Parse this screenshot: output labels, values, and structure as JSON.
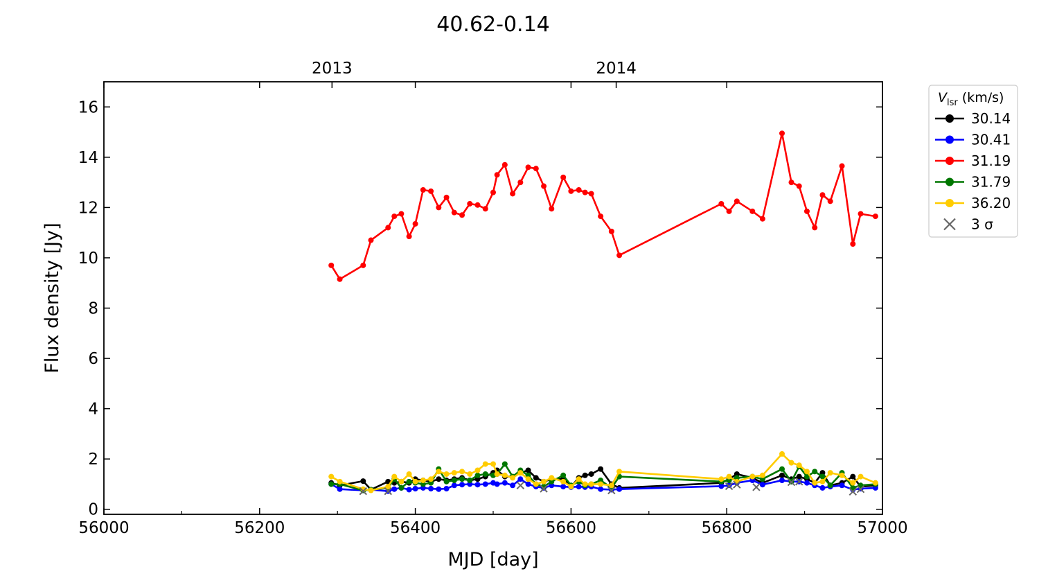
{
  "chart_data": {
    "type": "line",
    "title": "40.62-0.14",
    "xlabel": "MJD [day]",
    "ylabel": "Flux density [Jy]",
    "xlim": [
      56000,
      57000
    ],
    "ylim": [
      -0.2,
      17
    ],
    "x_ticks": [
      56000,
      56200,
      56400,
      56600,
      56800,
      57000
    ],
    "y_ticks": [
      0,
      2,
      4,
      6,
      8,
      10,
      12,
      14,
      16
    ],
    "top_axis": {
      "ticks": [
        {
          "label": "2013",
          "x": 56293
        },
        {
          "label": "2014",
          "x": 56658
        }
      ]
    },
    "grid": false,
    "legend": {
      "position": "outside-right",
      "title_main": "V",
      "title_sub": "lsr",
      "title_unit": " (km/s)",
      "sigma_label": "3 σ"
    },
    "series": [
      {
        "name": "30.14",
        "color": "#000000",
        "x": [
          56292,
          56303,
          56333,
          56343,
          56365,
          56373,
          56382,
          56392,
          56400,
          56410,
          56420,
          56430,
          56440,
          56450,
          56460,
          56470,
          56480,
          56490,
          56500,
          56505,
          56515,
          56525,
          56535,
          56545,
          56555,
          56565,
          56575,
          56590,
          56600,
          56610,
          56618,
          56626,
          56638,
          56652,
          56662,
          56793,
          56803,
          56813,
          56833,
          56846,
          56871,
          56883,
          56893,
          56903,
          56913,
          56923,
          56933,
          56948,
          56962,
          56972,
          56991
        ],
        "y": [
          1.05,
          0.95,
          1.12,
          0.78,
          1.1,
          1.05,
          1.1,
          1.05,
          1.2,
          1.15,
          1.1,
          1.2,
          1.15,
          1.2,
          1.25,
          1.15,
          1.2,
          1.3,
          1.45,
          1.55,
          1.3,
          1.3,
          1.45,
          1.55,
          1.25,
          1.1,
          1.2,
          1.2,
          0.9,
          1.25,
          1.35,
          1.4,
          1.6,
          1.0,
          0.85,
          1.05,
          1.2,
          1.4,
          1.25,
          1.05,
          1.35,
          1.2,
          1.3,
          1.2,
          1.05,
          1.45,
          0.95,
          1.05,
          1.3,
          0.9,
          0.95
        ]
      },
      {
        "name": "30.41",
        "color": "#0000ff",
        "x": [
          56292,
          56303,
          56333,
          56343,
          56365,
          56373,
          56382,
          56392,
          56400,
          56410,
          56420,
          56430,
          56440,
          56450,
          56460,
          56470,
          56480,
          56490,
          56500,
          56505,
          56515,
          56525,
          56535,
          56545,
          56555,
          56565,
          56575,
          56590,
          56600,
          56610,
          56618,
          56626,
          56638,
          56652,
          56662,
          56793,
          56803,
          56813,
          56833,
          56846,
          56871,
          56883,
          56893,
          56903,
          56913,
          56923,
          56933,
          56948,
          56962,
          56972,
          56991
        ],
        "y": [
          1.0,
          0.8,
          0.75,
          0.78,
          0.72,
          0.8,
          0.85,
          0.78,
          0.82,
          0.85,
          0.82,
          0.8,
          0.82,
          0.95,
          0.98,
          1.0,
          0.98,
          1.0,
          1.05,
          1.0,
          1.05,
          0.95,
          1.2,
          1.0,
          0.9,
          0.85,
          0.95,
          0.9,
          0.88,
          0.9,
          0.88,
          0.9,
          0.8,
          0.78,
          0.8,
          0.92,
          0.95,
          1.05,
          1.15,
          0.98,
          1.15,
          1.1,
          1.1,
          1.05,
          0.95,
          0.85,
          0.9,
          0.95,
          0.78,
          0.82,
          0.85
        ]
      },
      {
        "name": "31.19",
        "color": "#ff0000",
        "x": [
          56292,
          56303,
          56333,
          56343,
          56365,
          56373,
          56382,
          56392,
          56400,
          56410,
          56420,
          56430,
          56440,
          56450,
          56460,
          56470,
          56480,
          56490,
          56500,
          56505,
          56515,
          56525,
          56535,
          56545,
          56555,
          56565,
          56575,
          56590,
          56600,
          56610,
          56618,
          56626,
          56638,
          56652,
          56662,
          56793,
          56803,
          56813,
          56833,
          56846,
          56871,
          56883,
          56893,
          56903,
          56913,
          56923,
          56933,
          56948,
          56962,
          56972,
          56991
        ],
        "y": [
          9.7,
          9.15,
          9.7,
          10.7,
          11.2,
          11.65,
          11.75,
          10.85,
          11.35,
          12.7,
          12.65,
          12.0,
          12.4,
          11.8,
          11.7,
          12.15,
          12.1,
          11.95,
          12.6,
          13.3,
          13.7,
          12.55,
          13.0,
          13.6,
          13.55,
          12.85,
          11.95,
          13.2,
          12.65,
          12.7,
          12.6,
          12.55,
          11.65,
          11.05,
          10.1,
          12.15,
          11.85,
          12.25,
          11.85,
          11.55,
          14.95,
          13.0,
          12.85,
          11.85,
          11.2,
          12.5,
          12.25,
          13.65,
          10.55,
          11.75,
          11.65
        ]
      },
      {
        "name": "31.79",
        "color": "#007700",
        "x": [
          56292,
          56303,
          56333,
          56343,
          56365,
          56373,
          56382,
          56392,
          56400,
          56410,
          56420,
          56430,
          56440,
          56450,
          56460,
          56470,
          56480,
          56490,
          56500,
          56505,
          56515,
          56525,
          56535,
          56545,
          56555,
          56565,
          56575,
          56590,
          56600,
          56610,
          56618,
          56626,
          56638,
          56652,
          56662,
          56793,
          56803,
          56813,
          56833,
          56846,
          56871,
          56883,
          56893,
          56903,
          56913,
          56923,
          56933,
          56948,
          56962,
          56972,
          56991
        ],
        "y": [
          1.0,
          1.0,
          0.75,
          0.78,
          0.85,
          1.2,
          0.85,
          1.1,
          1.05,
          1.0,
          1.05,
          1.6,
          1.1,
          1.15,
          1.2,
          1.15,
          1.35,
          1.4,
          1.35,
          1.4,
          1.8,
          1.3,
          1.55,
          1.35,
          1.0,
          0.9,
          1.1,
          1.35,
          0.95,
          1.1,
          0.95,
          1.0,
          1.15,
          0.85,
          1.3,
          1.1,
          1.15,
          1.25,
          1.3,
          1.2,
          1.6,
          1.1,
          1.7,
          1.3,
          1.5,
          1.3,
          0.95,
          1.45,
          0.85,
          0.95,
          1.0
        ]
      },
      {
        "name": "36.20",
        "color": "#ffcc00",
        "x": [
          56292,
          56303,
          56333,
          56343,
          56365,
          56373,
          56382,
          56392,
          56400,
          56410,
          56420,
          56430,
          56440,
          56450,
          56460,
          56470,
          56480,
          56490,
          56500,
          56505,
          56515,
          56525,
          56535,
          56545,
          56555,
          56565,
          56575,
          56590,
          56600,
          56610,
          56618,
          56626,
          56638,
          56652,
          56662,
          56793,
          56803,
          56813,
          56833,
          56846,
          56871,
          56883,
          56893,
          56903,
          56913,
          56923,
          56933,
          56948,
          56962,
          56972,
          56991
        ],
        "y": [
          1.3,
          1.1,
          0.8,
          0.75,
          0.9,
          1.3,
          1.1,
          1.4,
          1.1,
          1.15,
          1.2,
          1.5,
          1.4,
          1.45,
          1.5,
          1.4,
          1.55,
          1.8,
          1.8,
          1.4,
          1.35,
          1.25,
          1.45,
          1.2,
          1.0,
          1.1,
          1.25,
          1.1,
          0.9,
          1.2,
          1.0,
          1.0,
          1.0,
          0.95,
          1.5,
          1.2,
          1.3,
          1.1,
          1.3,
          1.35,
          2.2,
          1.85,
          1.75,
          1.5,
          1.05,
          1.1,
          1.45,
          1.35,
          1.05,
          1.3,
          1.05
        ]
      }
    ],
    "sigma_points": {
      "name": "3 σ",
      "color": "#666666",
      "x": [
        56333,
        56365,
        56535,
        56565,
        56652,
        56803,
        56813,
        56838,
        56883,
        56893,
        56962,
        56972
      ],
      "y": [
        0.72,
        0.72,
        0.95,
        0.82,
        0.75,
        0.92,
        0.98,
        0.88,
        1.08,
        1.1,
        0.7,
        0.8
      ]
    }
  }
}
